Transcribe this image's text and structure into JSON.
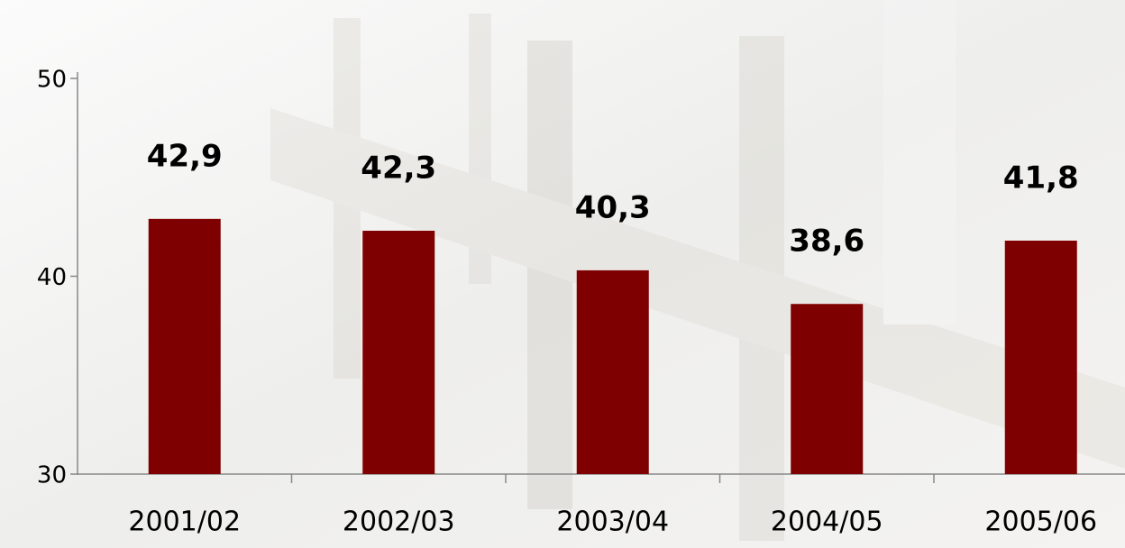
{
  "chart_data": {
    "type": "bar",
    "categories": [
      "2001/02",
      "2002/03",
      "2003/04",
      "2004/05",
      "2005/06"
    ],
    "values": [
      42.9,
      42.3,
      40.3,
      38.6,
      41.8
    ],
    "value_labels": [
      "42,9",
      "42,3",
      "40,3",
      "38,6",
      "41,8"
    ],
    "color": "#7f0000",
    "ylim": [
      30,
      50
    ],
    "yticks": [
      30,
      40,
      50
    ]
  }
}
